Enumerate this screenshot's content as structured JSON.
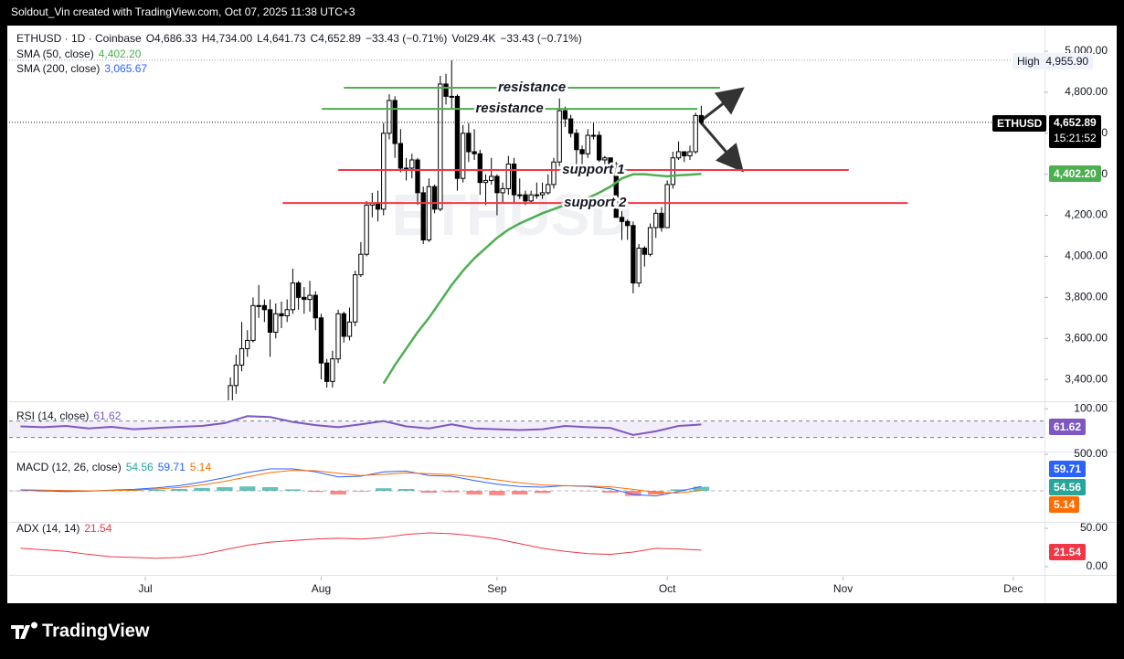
{
  "header": {
    "credit": "Soldout_Vin created with TradingView.com, Oct 07, 2025 11:38 UTC+3"
  },
  "footer": {
    "logo": "TradingView"
  },
  "chart_data": [
    {
      "type": "candlestick",
      "symbol": "ETHUSD · 1D · Coinbase",
      "ohlc_legend": [
        "O4,686.33",
        "H4,734.00",
        "L4,641.73",
        "C4,652.89",
        "−33.43 (−0.71%)",
        "Vol29.4K",
        "−33.43 (−0.71%)"
      ],
      "watermark": "ETHUSD",
      "up_color": "#ffffff",
      "down_color": "#000000",
      "x": [
        0,
        1,
        2,
        3,
        4,
        5,
        6,
        7,
        8,
        9,
        10,
        11,
        12,
        13,
        14,
        15,
        16,
        17,
        18,
        19,
        20,
        21,
        22,
        23,
        24,
        25,
        26,
        27,
        28,
        29,
        30,
        31,
        32,
        33,
        34,
        35,
        36,
        37,
        38,
        39,
        40,
        41,
        42,
        43,
        44,
        45,
        46,
        47,
        48,
        49,
        50,
        51,
        52,
        53,
        54,
        55,
        56,
        57,
        58,
        59,
        60,
        61,
        62,
        63,
        64,
        65,
        66,
        67,
        68,
        69,
        70,
        71,
        72,
        73,
        74,
        75,
        76,
        77,
        78,
        79,
        80,
        81,
        82,
        83,
        84
      ],
      "open": [
        3010,
        3140,
        3370,
        3470,
        3550,
        3590,
        3760,
        3760,
        3740,
        3630,
        3720,
        3710,
        3740,
        3870,
        3800,
        3790,
        3810,
        3700,
        3480,
        3390,
        3500,
        3720,
        3610,
        3680,
        3910,
        4010,
        4250,
        4260,
        4230,
        4600,
        4760,
        4550,
        4430,
        4430,
        4470,
        4310,
        4080,
        4340,
        4230,
        4840,
        4780,
        4780,
        4380,
        4600,
        4510,
        4500,
        4360,
        4370,
        4390,
        4310,
        4330,
        4450,
        4300,
        4300,
        4270,
        4300,
        4300,
        4310,
        4350,
        4460,
        4710,
        4670,
        4600,
        4520,
        4500,
        4590,
        4590,
        4470,
        4480,
        4450,
        4190,
        4170,
        4150,
        3870,
        4040,
        4010,
        4140,
        4210,
        4140,
        4350,
        4480,
        4510,
        4490,
        4510,
        4686.33
      ],
      "high": [
        3170,
        3410,
        3520,
        3680,
        3640,
        3800,
        3860,
        3790,
        3790,
        3770,
        3780,
        3790,
        3940,
        3880,
        3850,
        3880,
        3830,
        3720,
        3500,
        3540,
        3740,
        3730,
        3750,
        3930,
        4070,
        4270,
        4310,
        4320,
        4650,
        4790,
        4780,
        4620,
        4480,
        4500,
        4480,
        4340,
        4380,
        4350,
        4880,
        4890,
        4955.9,
        4790,
        4640,
        4650,
        4620,
        4520,
        4400,
        4480,
        4400,
        4360,
        4490,
        4480,
        4380,
        4320,
        4320,
        4360,
        4360,
        4400,
        4480,
        4770,
        4730,
        4690,
        4620,
        4540,
        4620,
        4650,
        4610,
        4490,
        4480,
        4460,
        4220,
        4180,
        4170,
        4060,
        4050,
        4160,
        4230,
        4240,
        4370,
        4510,
        4560,
        4510,
        4540,
        4700,
        4734
      ],
      "low": [
        2990,
        3120,
        3330,
        3440,
        3510,
        3580,
        3700,
        3680,
        3510,
        3600,
        3650,
        3680,
        3720,
        3740,
        3720,
        3730,
        3640,
        3400,
        3360,
        3360,
        3480,
        3580,
        3590,
        3660,
        3900,
        4000,
        4190,
        4170,
        4200,
        4570,
        4480,
        4410,
        4370,
        4380,
        4250,
        4060,
        4070,
        4210,
        4220,
        4740,
        4720,
        4320,
        4360,
        4460,
        4470,
        4300,
        4250,
        4350,
        4200,
        4260,
        4300,
        4260,
        4280,
        4250,
        4260,
        4280,
        4280,
        4300,
        4330,
        4440,
        4630,
        4580,
        4440,
        4440,
        4480,
        4570,
        4460,
        4440,
        4410,
        4190,
        4080,
        4080,
        3820,
        3850,
        3950,
        4000,
        4090,
        4120,
        4140,
        4330,
        4470,
        4460,
        4470,
        4500,
        4641.73
      ],
      "close": [
        3140,
        3370,
        3470,
        3550,
        3590,
        3760,
        3760,
        3740,
        3630,
        3720,
        3710,
        3740,
        3870,
        3800,
        3790,
        3810,
        3700,
        3480,
        3390,
        3500,
        3720,
        3610,
        3680,
        3910,
        4010,
        4250,
        4260,
        4230,
        4600,
        4760,
        4550,
        4430,
        4430,
        4470,
        4310,
        4080,
        4340,
        4230,
        4840,
        4780,
        4780,
        4380,
        4600,
        4510,
        4500,
        4360,
        4370,
        4390,
        4310,
        4330,
        4450,
        4300,
        4300,
        4270,
        4300,
        4300,
        4310,
        4350,
        4460,
        4710,
        4670,
        4600,
        4520,
        4500,
        4590,
        4590,
        4470,
        4480,
        4450,
        4190,
        4170,
        4150,
        3870,
        4040,
        4010,
        4140,
        4210,
        4140,
        4350,
        4480,
        4510,
        4490,
        4510,
        4686.33,
        4652.89
      ],
      "overlays": [
        {
          "name": "SMA (50, close)",
          "value_label": "4,402.20",
          "color": "#4caf50",
          "x": [
            28,
            30,
            32,
            34,
            36,
            38,
            40,
            42,
            44,
            46,
            48,
            50,
            52,
            54,
            56,
            58,
            60,
            62,
            64,
            66,
            68,
            70,
            72,
            74,
            76,
            78,
            80,
            82,
            84
          ],
          "values": [
            3380,
            3470,
            3550,
            3630,
            3700,
            3780,
            3860,
            3930,
            3990,
            4040,
            4090,
            4130,
            4160,
            4185,
            4210,
            4230,
            4250,
            4265,
            4285,
            4310,
            4340,
            4380,
            4400,
            4400,
            4395,
            4390,
            4395,
            4398,
            4402.2
          ]
        },
        {
          "name": "SMA (200, close)",
          "value_label": "3,065.67",
          "color": "#2962ff"
        }
      ],
      "levels": [
        {
          "label": "resistance",
          "value": 4822,
          "x": [
            21,
            87.3
          ],
          "color": "#4caf50"
        },
        {
          "label": "resistance",
          "value": 4719,
          "x": [
            17.1,
            83.3
          ],
          "color": "#4caf50"
        },
        {
          "label": "support 1",
          "value": 4421,
          "x": [
            20,
            110
          ],
          "color": "#f23645"
        },
        {
          "label": "support 2",
          "value": 4260,
          "x": [
            10.2,
            120.4
          ],
          "color": "#f23645"
        }
      ],
      "price_labels": {
        "high_title": "High",
        "high": "4,955.90",
        "symbol": "ETHUSD",
        "last": "4,652.89",
        "countdown": "15:21:52",
        "sma50": "4,402.20"
      },
      "xlim": [
        -38,
        144.5
      ],
      "xticks": [
        {
          "value": -14,
          "label": "Jul"
        },
        {
          "value": 17,
          "label": "Aug"
        },
        {
          "value": 48,
          "label": "Sep"
        },
        {
          "value": 78,
          "label": "Oct"
        },
        {
          "value": 109,
          "label": "Nov"
        },
        {
          "value": 139,
          "label": "Dec"
        }
      ],
      "ylim": [
        3298,
        5116
      ],
      "yticks": [
        {
          "value": 3400,
          "label": "3,400.00"
        },
        {
          "value": 3600,
          "label": "3,600.00"
        },
        {
          "value": 3800,
          "label": "3,800.00"
        },
        {
          "value": 4000,
          "label": "4,000.00"
        },
        {
          "value": 4200,
          "label": "4,200.00"
        },
        {
          "value": 4400,
          "label": "4,400.00"
        },
        {
          "value": 4600,
          "label": "4,600.00"
        },
        {
          "value": 4800,
          "label": "4,800.00"
        },
        {
          "value": 5000,
          "label": "5,000.00"
        }
      ]
    },
    {
      "type": "line",
      "title": "RSI (14, close)",
      "value_label": "61.62",
      "color": "#7e57c2",
      "band": [
        30,
        70
      ],
      "x": [
        -36,
        -32,
        -28,
        -24,
        -20,
        -16,
        -12,
        -8,
        -4,
        0,
        4,
        8,
        12,
        16,
        20,
        24,
        28,
        32,
        36,
        40,
        44,
        48,
        52,
        56,
        60,
        64,
        68,
        72,
        76,
        80,
        84
      ],
      "values": [
        57,
        55,
        58,
        52,
        56,
        50,
        53,
        56,
        58,
        65,
        82,
        80,
        68,
        60,
        55,
        62,
        70,
        57,
        52,
        62,
        52,
        50,
        48,
        50,
        58,
        55,
        53,
        36,
        45,
        58,
        61.62
      ],
      "xlim": [
        -38,
        144.5
      ],
      "ylim": [
        0,
        114
      ],
      "yticks": [
        {
          "value": 100,
          "label": "100.00"
        }
      ]
    },
    {
      "type": "macd",
      "title": "MACD (12, 26, close)",
      "x": [
        -36,
        -32,
        -28,
        -24,
        -20,
        -16,
        -12,
        -8,
        -4,
        0,
        4,
        8,
        12,
        16,
        20,
        24,
        28,
        32,
        36,
        40,
        44,
        48,
        52,
        56,
        60,
        64,
        68,
        72,
        76,
        80,
        84
      ],
      "histogram": {
        "value_label": "54.56",
        "color": "#26a69a",
        "negative_color": "#ff5252",
        "values": [
          -5,
          -10,
          -15,
          -5,
          5,
          10,
          15,
          25,
          40,
          50,
          60,
          50,
          20,
          -15,
          -50,
          -10,
          35,
          25,
          -25,
          -20,
          -50,
          -60,
          -50,
          -30,
          0,
          -5,
          -25,
          -70,
          -50,
          20,
          54.56
        ]
      },
      "macd": {
        "value_label": "59.71",
        "color": "#2962ff",
        "values": [
          10,
          0,
          -10,
          -5,
          10,
          20,
          40,
          70,
          120,
          180,
          250,
          300,
          300,
          260,
          190,
          200,
          260,
          270,
          210,
          200,
          140,
          90,
          60,
          50,
          70,
          60,
          30,
          -50,
          -70,
          -10,
          59.71
        ]
      },
      "signal": {
        "value_label": "5.14",
        "color": "#ff6d00",
        "values": [
          15,
          10,
          5,
          0,
          5,
          10,
          25,
          45,
          80,
          130,
          190,
          250,
          280,
          275,
          240,
          210,
          225,
          245,
          235,
          220,
          190,
          150,
          110,
          80,
          70,
          65,
          55,
          20,
          -20,
          -30,
          5.14
        ]
      },
      "xlim": [
        -38,
        144.5
      ],
      "ylim": [
        -412.5,
        512.5
      ],
      "yticks": [
        {
          "value": 500,
          "label": "500.00"
        }
      ]
    },
    {
      "type": "line",
      "title": "ADX (14, 14)",
      "value_label": "21.54",
      "color": "#f23645",
      "x": [
        -36,
        -32,
        -28,
        -24,
        -20,
        -16,
        -12,
        -8,
        -4,
        0,
        4,
        8,
        12,
        16,
        20,
        24,
        28,
        32,
        36,
        40,
        44,
        48,
        52,
        56,
        60,
        64,
        68,
        72,
        76,
        80,
        84
      ],
      "values": [
        24,
        22,
        20,
        16,
        13,
        12,
        11,
        12,
        16,
        22,
        28,
        32,
        34,
        36,
        37,
        36,
        38,
        42,
        44,
        43,
        40,
        36,
        30,
        24,
        20,
        17,
        16,
        19,
        24,
        23,
        21.54
      ],
      "xlim": [
        -38,
        144.5
      ],
      "ylim": [
        -9.5,
        57.1
      ],
      "yticks": [
        {
          "value": 50,
          "label": "50.00"
        },
        {
          "value": 0,
          "label": "0.00"
        }
      ]
    }
  ]
}
